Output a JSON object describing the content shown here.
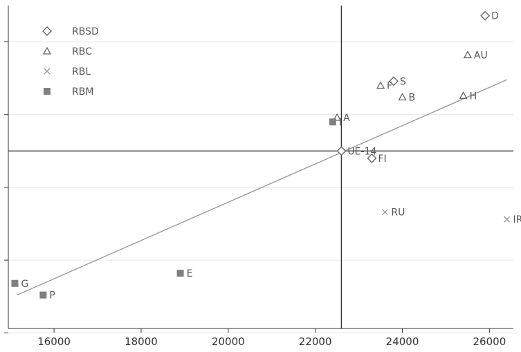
{
  "chart_data": {
    "type": "scatter",
    "title": "",
    "xlabel": "",
    "ylabel": "",
    "xlim": [
      14950,
      26550
    ],
    "ylim": [
      -1.22,
      1.0
    ],
    "x_ticks": [
      16000,
      18000,
      20000,
      22000,
      24000,
      26000
    ],
    "x_tick_labels": [
      "16000",
      "18000",
      "20000",
      "22000",
      "24000",
      "26000"
    ],
    "y_ticks": [
      0.75,
      0.25,
      -0.25,
      -0.75,
      -1.25
    ],
    "reference_lines": {
      "vertical_x": 22600,
      "horizontal_y": 0.0
    },
    "fit_line": {
      "x": [
        15150,
        26400
      ],
      "y": [
        -0.99,
        0.49
      ]
    },
    "legend_position": "top-left",
    "colors": {
      "RBSD": "#666666",
      "RBC": "#666666",
      "RBL": "#999999",
      "RBM": "#808080",
      "axis": "#333333",
      "grid": "#e6e6e6",
      "fit": "#999999"
    },
    "series": [
      {
        "name": "RBSD",
        "marker": "diamond",
        "points": [
          {
            "label": "D",
            "x": 25900,
            "y": 0.93
          },
          {
            "label": "S",
            "x": 23800,
            "y": 0.48
          },
          {
            "label": "UE-14",
            "x": 22600,
            "y": 0.0
          },
          {
            "label": "FI",
            "x": 23300,
            "y": -0.05
          }
        ]
      },
      {
        "name": "RBC",
        "marker": "triangle",
        "points": [
          {
            "label": "AU",
            "x": 25500,
            "y": 0.66
          },
          {
            "label": "F",
            "x": 23500,
            "y": 0.45
          },
          {
            "label": "B",
            "x": 24000,
            "y": 0.37
          },
          {
            "label": "H",
            "x": 25400,
            "y": 0.38
          },
          {
            "label": "A",
            "x": 22500,
            "y": 0.23
          }
        ]
      },
      {
        "name": "RBL",
        "marker": "x",
        "points": [
          {
            "label": "RU",
            "x": 23600,
            "y": -0.42
          },
          {
            "label": "IR",
            "x": 26400,
            "y": -0.47
          }
        ]
      },
      {
        "name": "RBM",
        "marker": "square",
        "points": [
          {
            "label": "I",
            "x": 22400,
            "y": 0.2
          },
          {
            "label": "E",
            "x": 18900,
            "y": -0.84
          },
          {
            "label": "G",
            "x": 15100,
            "y": -0.91
          },
          {
            "label": "P",
            "x": 15750,
            "y": -0.99
          }
        ]
      }
    ]
  }
}
